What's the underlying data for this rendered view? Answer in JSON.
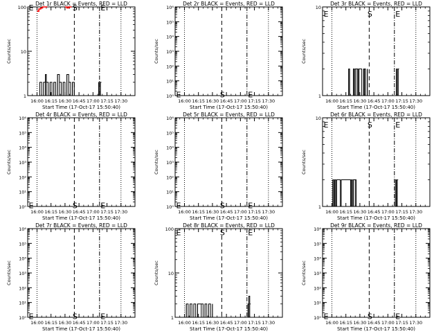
{
  "figure": {
    "y_axis_label": "Counts/sec",
    "x_axis_label": "Start Time (17-Oct-17 15:50:40)",
    "time_ticks": [
      "16:00",
      "16:15",
      "16:30",
      "16:45",
      "17:00",
      "17:15",
      "17:30"
    ],
    "x_range_minutes": [
      -10,
      105
    ],
    "dotted_line_times": [
      "16:00",
      "17:30"
    ],
    "dashed_S_time": "16:40",
    "dashdot_E_time": "17:07",
    "marker_S": "S",
    "marker_E": "E",
    "event_color": "#000000",
    "lld_color": "#ff0000"
  },
  "chart_data": [
    {
      "type": "line",
      "title": "Det 1r BLACK = Events, RED = LLD",
      "yscale": "log",
      "ylim": [
        1,
        100
      ],
      "ytick_labels": [
        "1",
        "10",
        "100"
      ],
      "ytick_values": [
        1,
        10,
        100
      ],
      "markers": {
        "S": {
          "time_min": 40,
          "y": 100
        },
        "E": {
          "time_min": 67,
          "y": 100
        }
      },
      "series": [
        {
          "color": "#000000",
          "x": [
            1,
            3,
            5,
            7,
            9,
            10,
            12,
            14,
            16,
            18,
            20,
            22,
            24,
            26,
            28,
            30,
            32,
            34,
            36,
            38,
            40,
            66,
            67,
            68
          ],
          "y": [
            1,
            2,
            1,
            2,
            3,
            2,
            1,
            2,
            1,
            2,
            1,
            3,
            2,
            1,
            2,
            1,
            3,
            2,
            1,
            2,
            1,
            2,
            2,
            2
          ]
        },
        {
          "color": "#ff0000",
          "x": [
            0,
            2,
            4,
            6,
            8,
            10
          ],
          "y": [
            80,
            90,
            95,
            100,
            100,
            100
          ]
        },
        {
          "color": "#ff0000",
          "x": [
            30,
            32,
            34,
            36
          ],
          "y": [
            100,
            95,
            100,
            100
          ]
        }
      ]
    },
    {
      "type": "line",
      "title": "Det 2r BLACK = Events, RED = LLD",
      "yscale": "log",
      "ylim": [
        1,
        1000000
      ],
      "ytick_labels": [
        "10⁰",
        "10¹",
        "10²",
        "10³",
        "10⁴",
        "10⁵",
        "10⁶"
      ],
      "ytick_values": [
        1,
        10,
        100,
        1000,
        10000,
        100000,
        1000000
      ],
      "markers": {
        "S": {
          "time_min": 40,
          "y": 1.3
        },
        "E": {
          "time_min": 67,
          "y": 1.3
        }
      },
      "series": []
    },
    {
      "type": "line",
      "title": "Det 3r BLACK = Events, RED = LLD",
      "yscale": "log",
      "ylim": [
        1,
        10
      ],
      "ytick_labels": [
        "1",
        "10"
      ],
      "ytick_values": [
        1,
        10
      ],
      "markers": {
        "S": {
          "time_min": 40,
          "y": 8.5
        },
        "E": {
          "time_min": 67,
          "y": 8.5
        }
      },
      "series": [
        {
          "color": "#000000",
          "x": [
            17,
            18,
            19,
            23,
            24,
            25,
            27,
            28,
            29,
            32,
            34,
            35,
            36,
            38,
            69,
            70,
            71
          ],
          "y": [
            1,
            2,
            1,
            2,
            1,
            2,
            2,
            1,
            2,
            1,
            2,
            2,
            1,
            2,
            2,
            1,
            2
          ]
        }
      ]
    },
    {
      "type": "line",
      "title": "Det 4r BLACK = Events, RED = LLD",
      "yscale": "log",
      "ylim": [
        1,
        1000000
      ],
      "ytick_labels": [
        "10⁰",
        "10¹",
        "10²",
        "10³",
        "10⁴",
        "10⁵",
        "10⁶"
      ],
      "ytick_values": [
        1,
        10,
        100,
        1000,
        10000,
        100000,
        1000000
      ],
      "markers": {
        "S": {
          "time_min": 40,
          "y": 1.3
        },
        "E": {
          "time_min": 67,
          "y": 1.3
        }
      },
      "series": []
    },
    {
      "type": "line",
      "title": "Det 5r BLACK = Events, RED = LLD",
      "yscale": "log",
      "ylim": [
        1,
        1000000
      ],
      "ytick_labels": [
        "10⁰",
        "10¹",
        "10²",
        "10³",
        "10⁴",
        "10⁵",
        "10⁶"
      ],
      "ytick_values": [
        1,
        10,
        100,
        1000,
        10000,
        100000,
        1000000
      ],
      "markers": {
        "S": {
          "time_min": 40,
          "y": 1.3
        },
        "E": {
          "time_min": 67,
          "y": 1.3
        }
      },
      "series": []
    },
    {
      "type": "line",
      "title": "Det 6r BLACK = Events, RED = LLD",
      "yscale": "log",
      "ylim": [
        1,
        10
      ],
      "ytick_labels": [
        "1",
        "10"
      ],
      "ytick_values": [
        1,
        10
      ],
      "markers": {
        "S": {
          "time_min": 40,
          "y": 8.5
        },
        "E": {
          "time_min": 67,
          "y": 8.5
        }
      },
      "series": [
        {
          "color": "#000000",
          "x": [
            0,
            1,
            2,
            3,
            4,
            5,
            9,
            10,
            20,
            21,
            22,
            23,
            25,
            26,
            68,
            69,
            70
          ],
          "y": [
            1,
            2,
            1,
            2,
            1,
            2,
            1,
            2,
            1,
            2,
            1,
            2,
            2,
            1,
            2,
            1,
            2
          ]
        }
      ]
    },
    {
      "type": "line",
      "title": "Det 7r BLACK = Events, RED = LLD",
      "yscale": "log",
      "ylim": [
        1,
        1000000
      ],
      "ytick_labels": [
        "10⁰",
        "10¹",
        "10²",
        "10³",
        "10⁴",
        "10⁵",
        "10⁶"
      ],
      "ytick_values": [
        1,
        10,
        100,
        1000,
        10000,
        100000,
        1000000
      ],
      "markers": {
        "S": {
          "time_min": 40,
          "y": 1.3
        },
        "E": {
          "time_min": 67,
          "y": 1.3
        }
      },
      "series": []
    },
    {
      "type": "line",
      "title": "Det 8r BLACK = Events, RED = LLD",
      "yscale": "log",
      "ylim": [
        1,
        100
      ],
      "ytick_labels": [
        "1",
        "10",
        "100"
      ],
      "ytick_values": [
        1,
        10,
        100
      ],
      "markers": {
        "S": {
          "time_min": 40,
          "y": 85
        },
        "E": {
          "time_min": 67,
          "y": 85
        }
      },
      "series": [
        {
          "color": "#000000",
          "x": [
            1,
            2,
            4,
            6,
            8,
            10,
            12,
            14,
            18,
            20,
            22,
            24,
            26,
            28,
            30,
            68,
            69,
            70
          ],
          "y": [
            1,
            2,
            1,
            2,
            1,
            2,
            1,
            2,
            2,
            1,
            2,
            1,
            2,
            1,
            2,
            2,
            3,
            2
          ]
        }
      ]
    },
    {
      "type": "line",
      "title": "Det 9r BLACK = Events, RED = LLD",
      "yscale": "log",
      "ylim": [
        1,
        1000000
      ],
      "ytick_labels": [
        "10⁰",
        "10¹",
        "10²",
        "10³",
        "10⁴",
        "10⁵",
        "10⁶"
      ],
      "ytick_values": [
        1,
        10,
        100,
        1000,
        10000,
        100000,
        1000000
      ],
      "markers": {
        "S": {
          "time_min": 40,
          "y": 1.3
        },
        "E": {
          "time_min": 67,
          "y": 1.3
        }
      },
      "series": []
    }
  ]
}
